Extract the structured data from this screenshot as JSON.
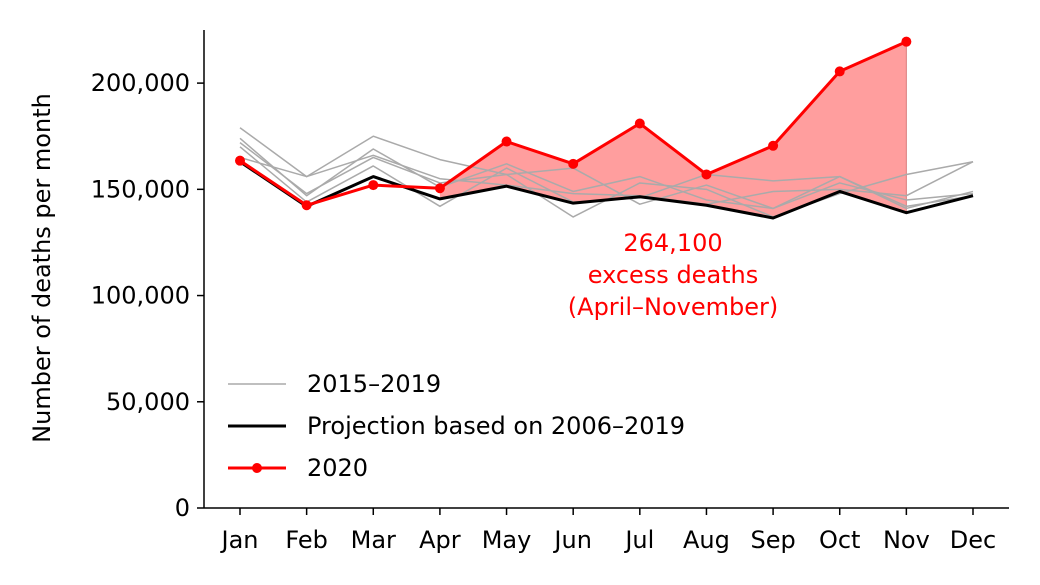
{
  "chart_data": {
    "type": "line",
    "ylabel": "Number of deaths per month",
    "xlabel": "",
    "categories": [
      "Jan",
      "Feb",
      "Mar",
      "Apr",
      "May",
      "Jun",
      "Jul",
      "Aug",
      "Sep",
      "Oct",
      "Nov",
      "Dec"
    ],
    "ylim": [
      0,
      225000
    ],
    "yticks": [
      0,
      50000,
      100000,
      150000,
      200000
    ],
    "ytick_labels": [
      "0",
      "50,000",
      "100,000",
      "150,000",
      "200,000"
    ],
    "grid": false,
    "legend_position": "lower-left",
    "colors": {
      "history": "#aaaaaa",
      "projection": "#000000",
      "year2020": "#ff0000",
      "excess_fill": "#ff9999"
    },
    "series": [
      {
        "name": "2015–2019",
        "role": "history",
        "lines": [
          [
            179000,
            156000,
            175000,
            164000,
            157000,
            137000,
            153000,
            150000,
            137000,
            148000,
            157000,
            163000
          ],
          [
            174000,
            147000,
            169000,
            151000,
            162000,
            149000,
            156000,
            145000,
            141000,
            156000,
            141000,
            149000
          ],
          [
            172000,
            148000,
            165000,
            153000,
            157000,
            160000,
            143000,
            152000,
            141000,
            153000,
            145000,
            148000
          ],
          [
            170000,
            144000,
            161000,
            142000,
            160000,
            144000,
            146000,
            157000,
            154000,
            156000,
            142000,
            147000
          ],
          [
            165000,
            156000,
            166000,
            155000,
            152000,
            148000,
            147000,
            143000,
            149000,
            150000,
            147000,
            163000
          ]
        ]
      },
      {
        "name": "Projection based on 2006–2019",
        "role": "projection",
        "values": [
          163000,
          142000,
          156000,
          145500,
          151500,
          143500,
          146500,
          142500,
          136500,
          149000,
          139000,
          147000
        ]
      },
      {
        "name": "2020",
        "role": "year2020",
        "values": [
          163500,
          142500,
          152000,
          150500,
          172500,
          162000,
          181000,
          157000,
          170500,
          205500,
          219500,
          null
        ]
      }
    ],
    "excess_area": {
      "from": "Apr",
      "to": "Nov",
      "between": [
        "2020",
        "Projection based on 2006–2019"
      ]
    },
    "annotation": [
      "264,100",
      "excess deaths",
      "(April–November)"
    ]
  }
}
